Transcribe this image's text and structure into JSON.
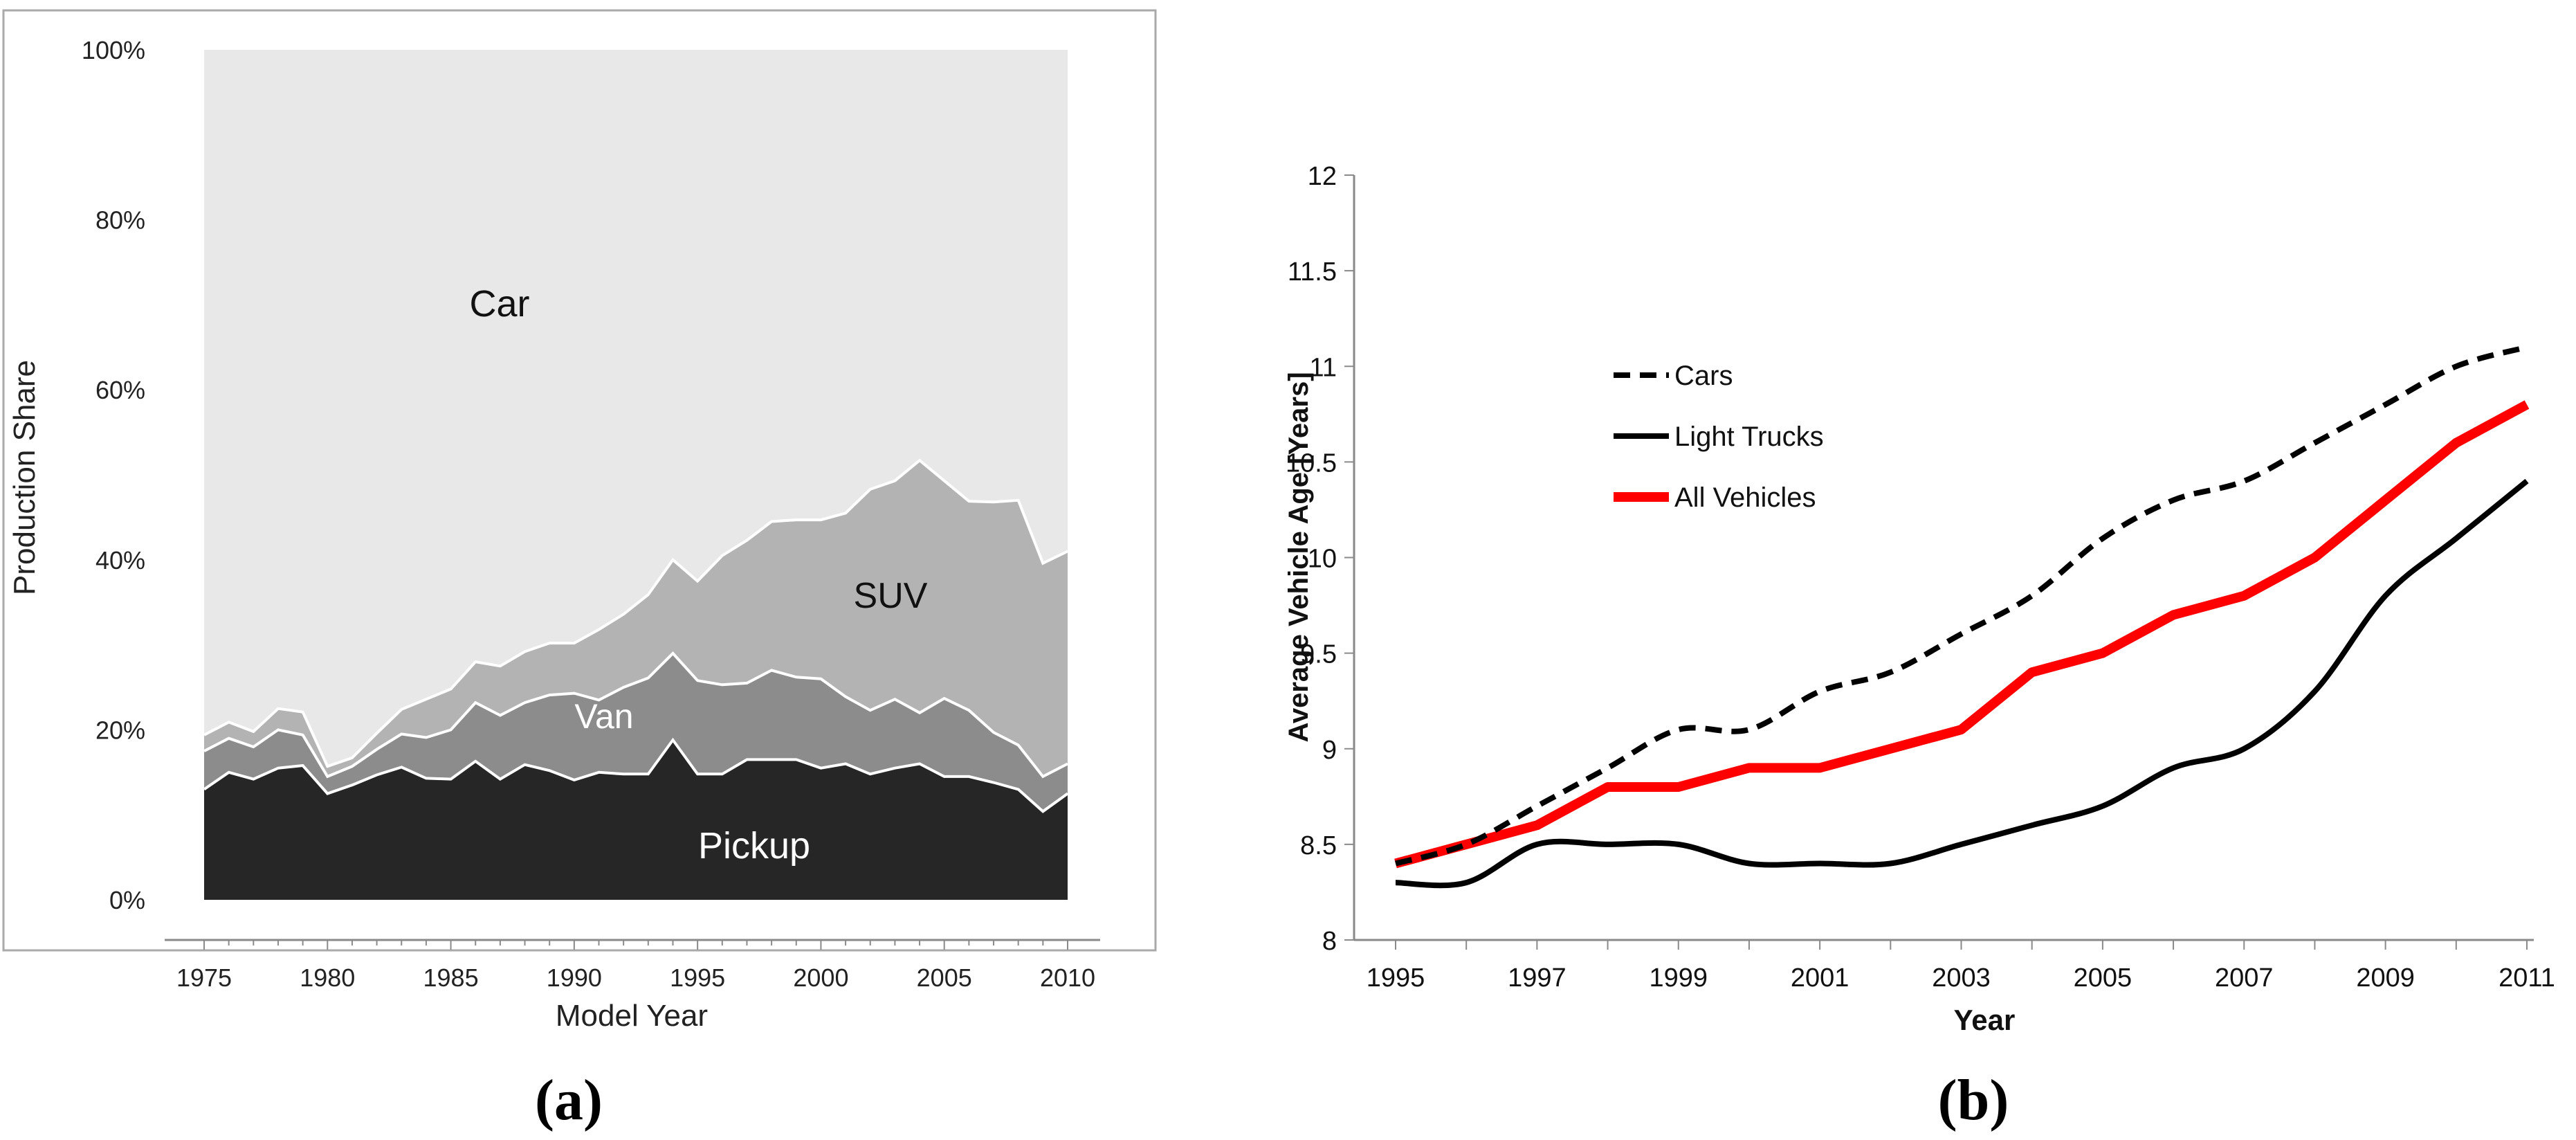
{
  "chart_data": [
    {
      "panel_label": "(a)",
      "panel_letter": "a",
      "type": "area",
      "stacked": true,
      "title": "",
      "xlabel": "Model Year",
      "ylabel": "Production Share",
      "ylim": [
        0,
        100
      ],
      "xlim": [
        1975,
        2010
      ],
      "x_ticks": [
        "1975",
        "1980",
        "1985",
        "1990",
        "1995",
        "2000",
        "2005",
        "2010"
      ],
      "y_ticks": [
        "0%",
        "20%",
        "40%",
        "60%",
        "80%",
        "100%"
      ],
      "area_labels": [
        "Pickup",
        "Van",
        "SUV",
        "Car"
      ],
      "x": [
        1975,
        1976,
        1977,
        1978,
        1979,
        1980,
        1981,
        1982,
        1983,
        1984,
        1985,
        1986,
        1987,
        1988,
        1989,
        1990,
        1991,
        1992,
        1993,
        1994,
        1995,
        1996,
        1997,
        1998,
        1999,
        2000,
        2001,
        2002,
        2003,
        2004,
        2005,
        2006,
        2007,
        2008,
        2009,
        2010
      ],
      "series": [
        {
          "name": "Pickup",
          "color": "#262626",
          "values": [
            13.0,
            15.0,
            14.2,
            15.5,
            15.8,
            12.5,
            13.5,
            14.7,
            15.6,
            14.3,
            14.2,
            16.3,
            14.2,
            15.9,
            15.2,
            14.1,
            15.0,
            14.8,
            14.8,
            18.8,
            14.8,
            14.8,
            16.5,
            16.5,
            16.5,
            15.5,
            16.0,
            14.8,
            15.5,
            16.0,
            14.5,
            14.5,
            13.8,
            13.0,
            10.4,
            12.5
          ]
        },
        {
          "name": "Van",
          "color": "#8c8c8c",
          "values": [
            4.5,
            4.0,
            3.8,
            4.5,
            3.6,
            2.0,
            2.2,
            3.0,
            3.9,
            4.8,
            5.8,
            6.9,
            7.5,
            7.3,
            8.9,
            10.2,
            8.5,
            10.2,
            11.3,
            10.2,
            11.0,
            10.5,
            9.0,
            10.5,
            9.7,
            10.5,
            7.9,
            7.5,
            8.1,
            6.0,
            9.2,
            7.8,
            5.9,
            5.2,
            4.1,
            3.5
          ]
        },
        {
          "name": "SUV",
          "color": "#b3b3b3",
          "values": [
            1.9,
            1.9,
            1.8,
            2.5,
            2.7,
            1.2,
            1.0,
            1.9,
            2.9,
            4.5,
            4.8,
            4.8,
            5.8,
            6.0,
            6.1,
            5.9,
            8.3,
            8.6,
            9.8,
            11.0,
            11.7,
            15.2,
            16.8,
            17.5,
            18.5,
            18.7,
            21.6,
            26.0,
            25.7,
            29.7,
            25.6,
            24.6,
            27.1,
            28.8,
            25.1,
            25.0
          ]
        },
        {
          "name": "Car",
          "color": "#e8e8e8",
          "values": [
            80.6,
            79.1,
            80.2,
            77.5,
            77.9,
            84.3,
            83.3,
            80.4,
            77.6,
            76.4,
            75.2,
            72.0,
            72.5,
            70.8,
            69.8,
            69.8,
            68.2,
            66.4,
            64.1,
            60.0,
            62.5,
            59.5,
            57.7,
            55.5,
            55.3,
            55.3,
            54.5,
            51.7,
            50.7,
            48.3,
            50.7,
            53.1,
            53.2,
            53.0,
            60.4,
            59.0
          ]
        }
      ]
    },
    {
      "panel_label": "(b)",
      "panel_letter": "b",
      "type": "line",
      "title": "",
      "xlabel": "Year",
      "ylabel": "Average Vehicle Age [Years]",
      "ylim": [
        8,
        12
      ],
      "xlim": [
        1995,
        2011
      ],
      "x_ticks": [
        "1995",
        "1997",
        "1999",
        "2001",
        "2003",
        "2005",
        "2007",
        "2009",
        "2011"
      ],
      "y_ticks": [
        "8",
        "8.5",
        "9",
        "9.5",
        "10",
        "10.5",
        "11",
        "11.5",
        "12"
      ],
      "legend_position": "top-left",
      "x": [
        1995,
        1996,
        1997,
        1998,
        1999,
        2000,
        2001,
        2002,
        2003,
        2004,
        2005,
        2006,
        2007,
        2008,
        2009,
        2010,
        2011
      ],
      "series": [
        {
          "name": "Cars",
          "color": "#000000",
          "style": "dashed",
          "values": [
            8.4,
            8.5,
            8.7,
            8.9,
            9.1,
            9.1,
            9.3,
            9.4,
            9.6,
            9.8,
            10.1,
            10.3,
            10.4,
            10.6,
            10.8,
            11.0,
            11.1
          ]
        },
        {
          "name": "Light Trucks",
          "color": "#000000",
          "style": "solid",
          "values": [
            8.3,
            8.3,
            8.5,
            8.5,
            8.5,
            8.4,
            8.4,
            8.4,
            8.5,
            8.6,
            8.7,
            8.9,
            9.0,
            9.3,
            9.8,
            10.1,
            10.4
          ]
        },
        {
          "name": "All Vehicles",
          "color": "#ff0000",
          "style": "solid-thick",
          "values": [
            8.4,
            8.5,
            8.6,
            8.8,
            8.8,
            8.9,
            8.9,
            9.0,
            9.1,
            9.4,
            9.5,
            9.7,
            9.8,
            10.0,
            10.3,
            10.6,
            10.8
          ]
        }
      ]
    }
  ]
}
